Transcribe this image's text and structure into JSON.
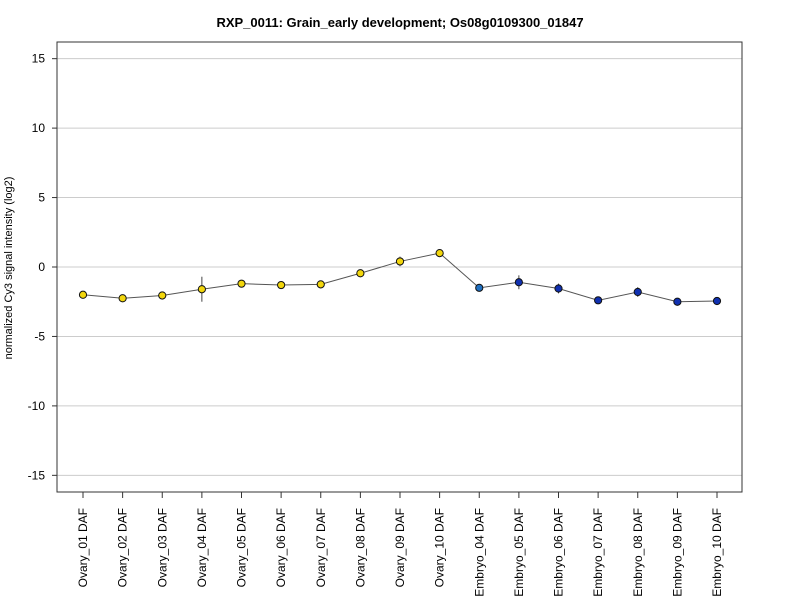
{
  "chart_data": {
    "type": "line",
    "title": "RXP_0011: Grain_early development; Os08g0109300_01847",
    "ylabel": "normalized Cy3 signal intensity (log2)",
    "xlabel": "",
    "ylim": [
      -16.2,
      16.2
    ],
    "yticks": [
      15,
      10,
      5,
      0,
      -5,
      -10,
      -15
    ],
    "grid": "horizontal",
    "categories": [
      "Ovary_01 DAF",
      "Ovary_02 DAF",
      "Ovary_03 DAF",
      "Ovary_04 DAF",
      "Ovary_05 DAF",
      "Ovary_06 DAF",
      "Ovary_07 DAF",
      "Ovary_08 DAF",
      "Ovary_09 DAF",
      "Ovary_10 DAF",
      "Embryo_04 DAF",
      "Embryo_05 DAF",
      "Embryo_06 DAF",
      "Embryo_07 DAF",
      "Embryo_08 DAF",
      "Embryo_09 DAF",
      "Embryo_10 DAF"
    ],
    "values": [
      -2.0,
      -2.25,
      -2.05,
      -1.6,
      -1.2,
      -1.3,
      -1.25,
      -0.45,
      0.4,
      1.0,
      -1.5,
      -1.1,
      -1.55,
      -2.4,
      -1.8,
      -2.5,
      -2.45
    ],
    "errors": [
      0.1,
      0.15,
      0.1,
      0.9,
      0.15,
      0.1,
      0.1,
      0.15,
      0.35,
      0.12,
      0.15,
      0.5,
      0.35,
      0.12,
      0.35,
      0.12,
      0.1
    ],
    "colors": {
      "ovary": "#f2d60c",
      "embryo_04": "#1f6fc0",
      "embryo": "#1030b0",
      "line": "#555555",
      "grid": "#cccccc"
    },
    "point_colors": [
      "#f2d60c",
      "#f2d60c",
      "#f2d60c",
      "#f2d60c",
      "#f2d60c",
      "#f2d60c",
      "#f2d60c",
      "#f2d60c",
      "#f2d60c",
      "#f2d60c",
      "#1f6fc0",
      "#1030b0",
      "#1030b0",
      "#1030b0",
      "#1030b0",
      "#1030b0",
      "#1030b0"
    ]
  }
}
